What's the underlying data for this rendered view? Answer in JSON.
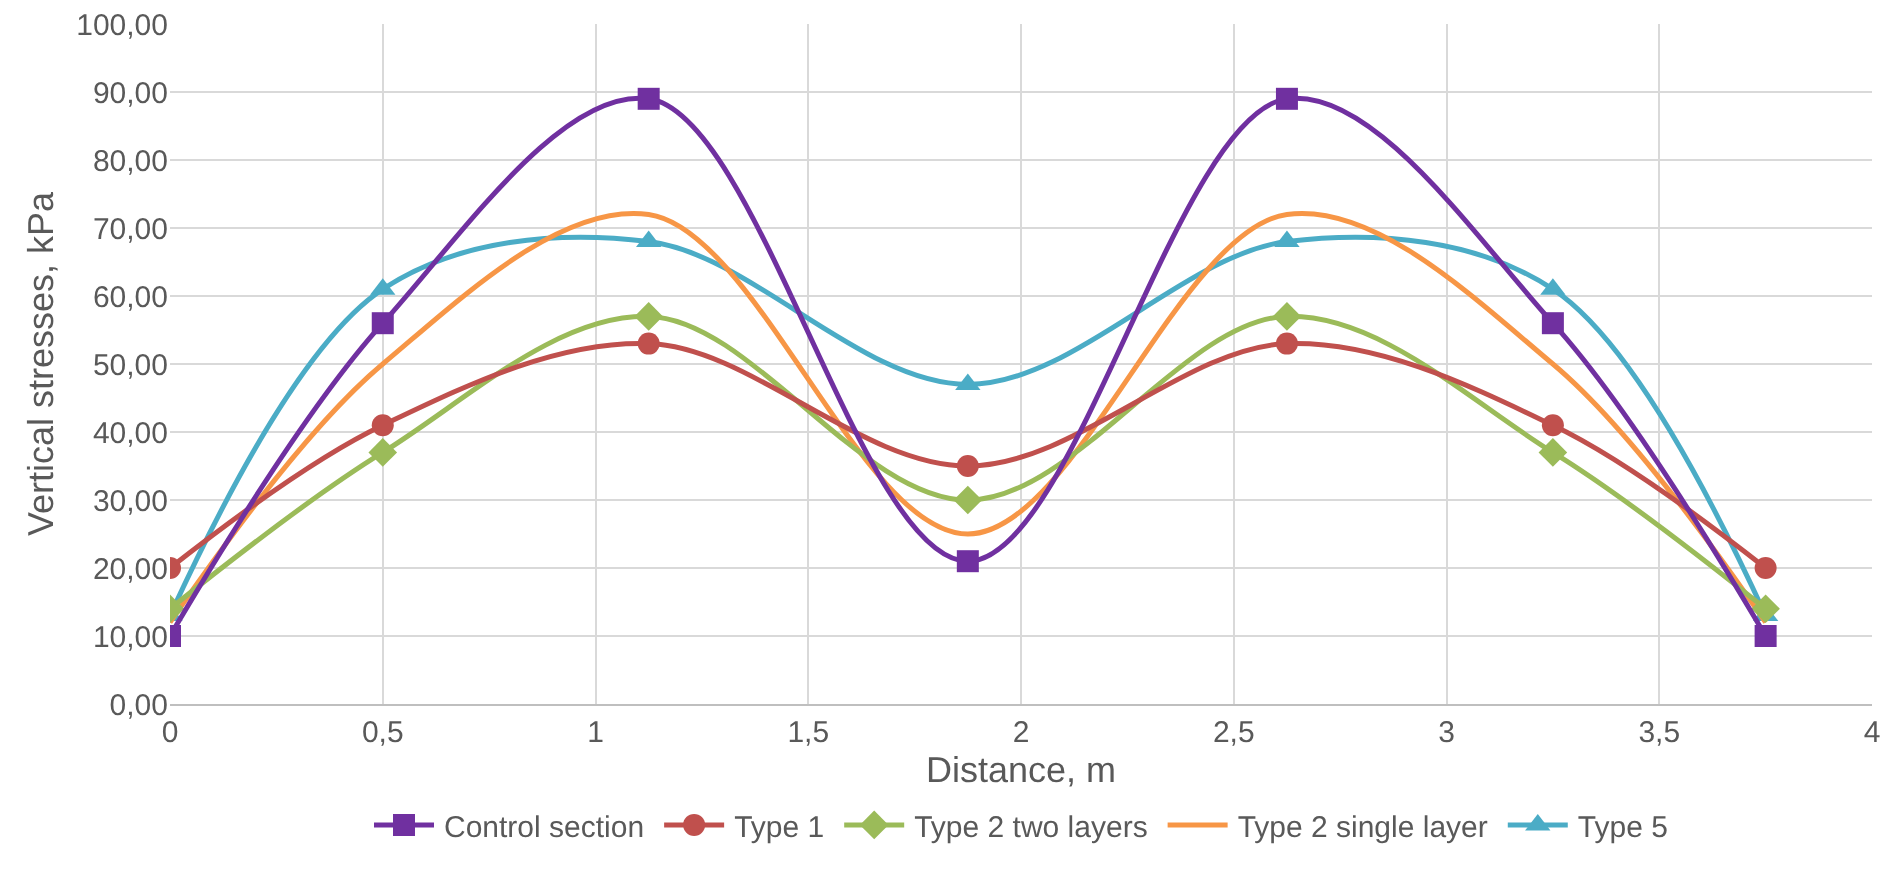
{
  "chart_data": {
    "type": "line",
    "xlabel": "Distance, m",
    "ylabel": "Vertical stresses, kPa",
    "x": [
      0,
      0.5,
      1.125,
      1.875,
      2.625,
      3.25,
      3.75
    ],
    "series": [
      {
        "name": "Control section",
        "color": "#7030a0",
        "marker": "square",
        "values": [
          10,
          56,
          89,
          21,
          89,
          56,
          10
        ]
      },
      {
        "name": "Type 1",
        "color": "#c0504d",
        "marker": "circle",
        "values": [
          20,
          41,
          53,
          35,
          53,
          41,
          20
        ]
      },
      {
        "name": "Type 2 two layers",
        "color": "#9bbb59",
        "marker": "diamond",
        "values": [
          14,
          37,
          57,
          30,
          57,
          37,
          14
        ]
      },
      {
        "name": "Type 2 single layer",
        "color": "#f79646",
        "marker": "none",
        "values": [
          12,
          50,
          72,
          25,
          72,
          50,
          12
        ]
      },
      {
        "name": "Type 5",
        "color": "#4bacc6",
        "marker": "triangle",
        "values": [
          13,
          61,
          68,
          47,
          68,
          61,
          13
        ]
      }
    ],
    "xlim": [
      0,
      4
    ],
    "xticks": [
      0,
      {
        "value": 0.5,
        "label": "0,5"
      },
      1,
      {
        "value": 1.5,
        "label": "1,5"
      },
      2,
      {
        "value": 2.5,
        "label": "2,5"
      },
      3,
      {
        "value": 3.5,
        "label": "3,5"
      },
      4
    ],
    "ylim": [
      0,
      100
    ],
    "yticks": [
      {
        "value": 0,
        "label": "0,00"
      },
      {
        "value": 10,
        "label": "10,00"
      },
      {
        "value": 20,
        "label": "20,00"
      },
      {
        "value": 30,
        "label": "30,00"
      },
      {
        "value": 40,
        "label": "40,00"
      },
      {
        "value": 50,
        "label": "50,00"
      },
      {
        "value": 60,
        "label": "60,00"
      },
      {
        "value": 70,
        "label": "70,00"
      },
      {
        "value": 80,
        "label": "80,00"
      },
      {
        "value": 90,
        "label": "90,00"
      },
      {
        "value": 100,
        "label": "100,00"
      }
    ],
    "grid": true,
    "legend": "bottom",
    "line_style": "solid"
  }
}
